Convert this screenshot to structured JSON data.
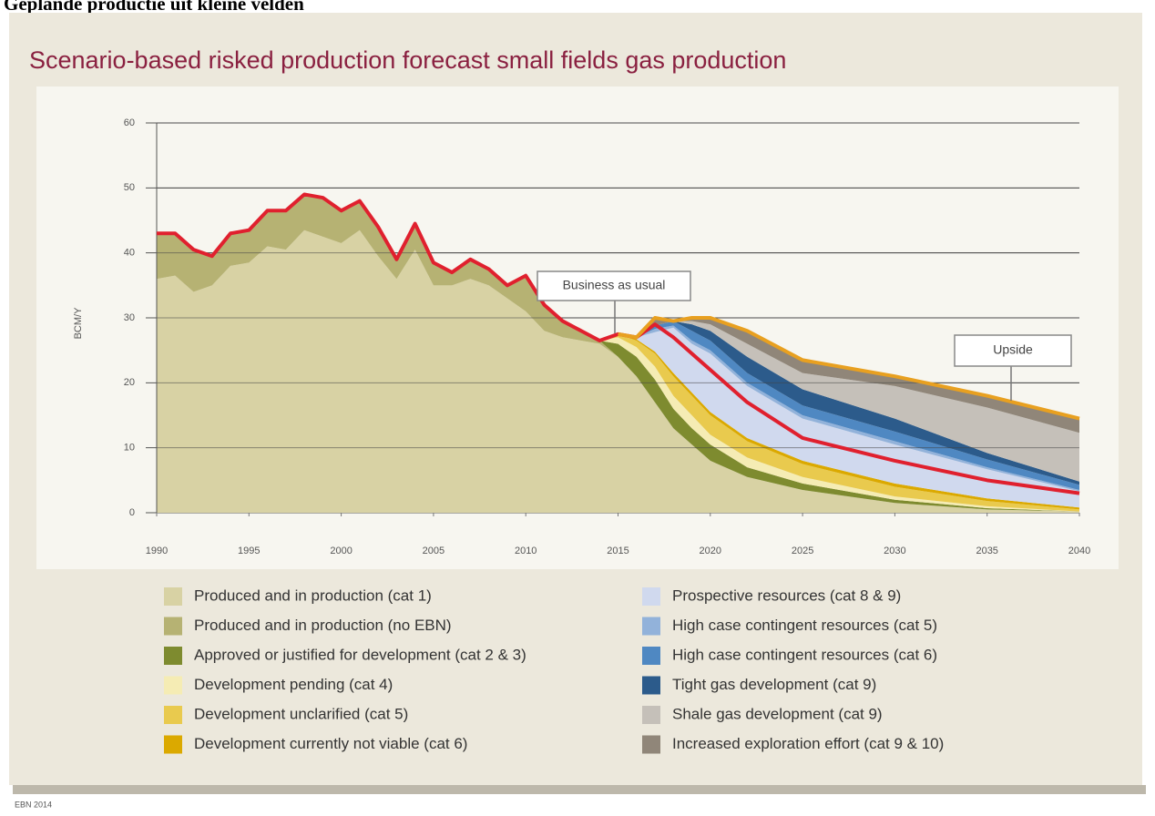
{
  "page_heading": "Geplande productie uit kleine velden",
  "source": "EBN 2014",
  "chart_data": {
    "type": "stacked-area",
    "title": "Scenario-based risked production forecast small fields gas production",
    "y_label": "BCM/Y",
    "x": [
      1990,
      1991,
      1992,
      1993,
      1994,
      1995,
      1996,
      1997,
      1998,
      1999,
      2000,
      2001,
      2002,
      2003,
      2004,
      2005,
      2006,
      2007,
      2008,
      2009,
      2010,
      2011,
      2012,
      2013,
      2014,
      2015,
      2016,
      2017,
      2018,
      2019,
      2020,
      2022,
      2025,
      2030,
      2035,
      2040
    ],
    "xlim": [
      1990,
      2040
    ],
    "xticks": [
      1990,
      1995,
      2000,
      2005,
      2010,
      2015,
      2020,
      2025,
      2030,
      2035,
      2040
    ],
    "ylim": [
      0,
      60
    ],
    "yticks": [
      0,
      10,
      20,
      30,
      40,
      50,
      60
    ],
    "grid": true,
    "series": [
      {
        "name": "Produced and in production (cat 1)",
        "color": "#d8d2a4",
        "values": [
          36,
          36.5,
          34,
          35,
          38,
          38.5,
          41,
          40.5,
          43.5,
          42.5,
          41.5,
          43.5,
          39.5,
          36,
          40.5,
          35,
          35,
          36,
          35,
          33,
          31,
          28,
          27,
          26.5,
          26,
          24,
          21,
          17,
          13,
          10.5,
          8,
          5.5,
          3.5,
          1.5,
          0.5,
          0.2
        ]
      },
      {
        "name": "Produced and in production (no EBN)",
        "color": "#b6b273",
        "values": [
          7,
          6.5,
          6.5,
          4.5,
          5,
          5,
          5.5,
          6,
          5.5,
          6,
          5,
          4.5,
          4.5,
          3,
          4,
          3.5,
          2,
          3,
          2.5,
          2,
          5.5,
          4,
          2.5,
          1.5,
          0.5,
          0,
          0,
          0,
          0,
          0,
          0,
          0,
          0,
          0,
          0,
          0
        ]
      },
      {
        "name": "Approved or justified for development (cat 2 & 3)",
        "color": "#7e8b2f",
        "values": [
          0,
          0,
          0,
          0,
          0,
          0,
          0,
          0,
          0,
          0,
          0,
          0,
          0,
          0,
          0,
          0,
          0,
          0,
          0,
          0,
          0,
          0,
          0,
          0,
          0,
          2,
          3,
          3.5,
          3,
          2.5,
          2.5,
          1.5,
          1,
          0.5,
          0.2,
          0
        ]
      },
      {
        "name": "Development pending (cat 4)",
        "color": "#f5ecb4",
        "values": [
          0,
          0,
          0,
          0,
          0,
          0,
          0,
          0,
          0,
          0,
          0,
          0,
          0,
          0,
          0,
          0,
          0,
          0,
          0,
          0,
          0,
          0,
          0,
          0,
          0,
          1,
          1.5,
          2,
          2,
          2,
          1.5,
          1.5,
          1,
          0.5,
          0.3,
          0
        ]
      },
      {
        "name": "Development unclarified (cat 5)",
        "color": "#e9ca4e",
        "values": [
          0,
          0,
          0,
          0,
          0,
          0,
          0,
          0,
          0,
          0,
          0,
          0,
          0,
          0,
          0,
          0,
          0,
          0,
          0,
          0,
          0,
          0,
          0,
          0,
          0,
          0.5,
          1,
          2,
          3,
          3,
          3,
          2.5,
          2,
          1.5,
          0.8,
          0.3
        ]
      },
      {
        "name": "Development currently not viable (cat 6)",
        "color": "#dba900",
        "values": [
          0,
          0,
          0,
          0,
          0,
          0,
          0,
          0,
          0,
          0,
          0,
          0,
          0,
          0,
          0,
          0,
          0,
          0,
          0,
          0,
          0,
          0,
          0,
          0,
          0,
          0,
          0.2,
          0.3,
          0.5,
          0.5,
          0.5,
          0.5,
          0.5,
          0.5,
          0.4,
          0.3
        ]
      },
      {
        "name": "Prospective resources (cat 8 & 9)",
        "color": "#d0d9ee",
        "values": [
          0,
          0,
          0,
          0,
          0,
          0,
          0,
          0,
          0,
          0,
          0,
          0,
          0,
          0,
          0,
          0,
          0,
          0,
          0,
          0,
          0,
          0,
          0,
          0,
          0,
          0,
          0.3,
          3,
          7,
          7.5,
          9,
          8,
          6.5,
          6,
          4.5,
          2.5
        ]
      },
      {
        "name": "High case contingent resources (cat 5)",
        "color": "#92b2da",
        "values": [
          0,
          0,
          0,
          0,
          0,
          0,
          0,
          0,
          0,
          0,
          0,
          0,
          0,
          0,
          0,
          0,
          0,
          0,
          0,
          0,
          0,
          0,
          0,
          0,
          0,
          0,
          0,
          0.5,
          0.3,
          0.5,
          0.5,
          0.5,
          0.5,
          0.5,
          0.3,
          0.2
        ]
      },
      {
        "name": "High case contingent resources (cat 6)",
        "color": "#4f88c2",
        "values": [
          0,
          0,
          0,
          0,
          0,
          0,
          0,
          0,
          0,
          0,
          0,
          0,
          0,
          0,
          0,
          0,
          0,
          0,
          0,
          0,
          0,
          0,
          0,
          0,
          0,
          0,
          0,
          0.5,
          0.7,
          1.5,
          1.5,
          1.5,
          1.5,
          1.5,
          1.2,
          0.8
        ]
      },
      {
        "name": "Tight gas development (cat 9)",
        "color": "#2c5b8b",
        "values": [
          0,
          0,
          0,
          0,
          0,
          0,
          0,
          0,
          0,
          0,
          0,
          0,
          0,
          0,
          0,
          0,
          0,
          0,
          0,
          0,
          0,
          0,
          0,
          0,
          0,
          0,
          0,
          0,
          0,
          1,
          1.5,
          2.5,
          2.5,
          2,
          1,
          0.5
        ]
      },
      {
        "name": "Shale gas development (cat 9)",
        "color": "#c5c0b9",
        "values": [
          0,
          0,
          0,
          0,
          0,
          0,
          0,
          0,
          0,
          0,
          0,
          0,
          0,
          0,
          0,
          0,
          0,
          0,
          0,
          0,
          0,
          0,
          0,
          0,
          0,
          0,
          0,
          0,
          0,
          0.5,
          1,
          2,
          2.5,
          5,
          7,
          7.5
        ]
      },
      {
        "name": "Increased exploration effort (cat 9 & 10)",
        "color": "#908679",
        "values": [
          0,
          0,
          0,
          0,
          0,
          0,
          0,
          0,
          0,
          0,
          0,
          0,
          0,
          0,
          0,
          0,
          0,
          0,
          0,
          0,
          0,
          0,
          0,
          0,
          0,
          0,
          0,
          1.2,
          0,
          0.5,
          1,
          2,
          2,
          1.5,
          1.8,
          2.2
        ]
      }
    ],
    "lines": [
      {
        "name": "Business as usual",
        "color": "#e0202e",
        "values": [
          43,
          43,
          40.5,
          39.5,
          43,
          43.5,
          46.5,
          46.5,
          49,
          48.5,
          46.5,
          48,
          44,
          39,
          44.5,
          38.5,
          37,
          39,
          37.5,
          35,
          36.5,
          32,
          29.5,
          28,
          26.5,
          27.5,
          27,
          29,
          27,
          24.5,
          22,
          17,
          11.5,
          8,
          5,
          3
        ]
      },
      {
        "name": "Upside",
        "color": "#e8a020",
        "values": [
          null,
          null,
          null,
          null,
          null,
          null,
          null,
          null,
          null,
          null,
          null,
          null,
          null,
          null,
          null,
          null,
          null,
          null,
          null,
          null,
          null,
          null,
          null,
          null,
          null,
          27.5,
          27,
          30,
          29.5,
          30,
          30,
          28,
          23.5,
          21,
          18,
          14.5
        ]
      }
    ]
  }
}
